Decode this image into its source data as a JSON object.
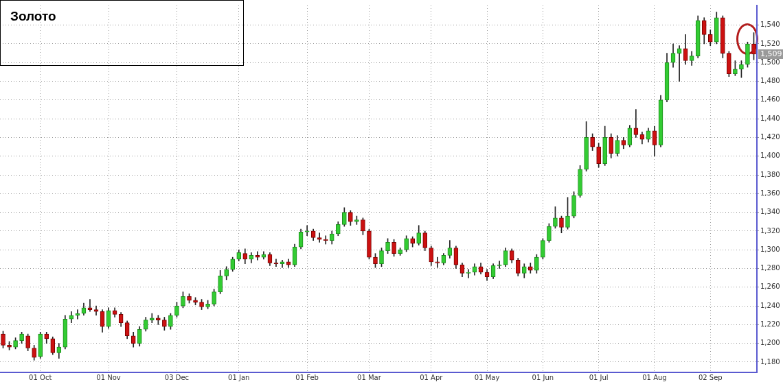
{
  "chart_data": {
    "type": "candlestick",
    "title": "Золото",
    "categories": [
      null,
      null,
      null,
      null,
      null,
      null,
      "01 Oct",
      null,
      null,
      null,
      null,
      null,
      null,
      null,
      null,
      null,
      null,
      "01 Nov",
      null,
      null,
      null,
      null,
      null,
      null,
      null,
      null,
      null,
      null,
      "03 Dec",
      null,
      null,
      null,
      null,
      null,
      null,
      null,
      null,
      null,
      "01 Jan",
      null,
      null,
      null,
      null,
      null,
      null,
      null,
      null,
      null,
      null,
      "01 Feb",
      null,
      null,
      null,
      null,
      null,
      null,
      null,
      null,
      null,
      "01 Mar",
      null,
      null,
      null,
      null,
      null,
      null,
      null,
      null,
      null,
      "01 Apr",
      null,
      null,
      null,
      null,
      null,
      null,
      null,
      null,
      "01 May",
      null,
      null,
      null,
      null,
      null,
      null,
      null,
      null,
      "01 Jun",
      null,
      null,
      null,
      null,
      null,
      null,
      null,
      null,
      "01 Jul",
      null,
      null,
      null,
      null,
      null,
      null,
      null,
      null,
      "01 Aug",
      null,
      null,
      null,
      null,
      null,
      null,
      null,
      null,
      "02 Sep",
      null,
      null,
      null,
      null,
      null,
      null,
      null
    ],
    "ohlc": [
      [
        1210,
        1213,
        1195,
        1198
      ],
      [
        1198,
        1202,
        1193,
        1196
      ],
      [
        1196,
        1206,
        1194,
        1203
      ],
      [
        1203,
        1212,
        1200,
        1210
      ],
      [
        1208,
        1210,
        1192,
        1195
      ],
      [
        1195,
        1198,
        1182,
        1185
      ],
      [
        1186,
        1212,
        1184,
        1210
      ],
      [
        1210,
        1212,
        1200,
        1205
      ],
      [
        1205,
        1207,
        1188,
        1190
      ],
      [
        1190,
        1200,
        1184,
        1196
      ],
      [
        1196,
        1230,
        1194,
        1226
      ],
      [
        1226,
        1234,
        1222,
        1230
      ],
      [
        1230,
        1236,
        1226,
        1232
      ],
      [
        1232,
        1243,
        1230,
        1238
      ],
      [
        1238,
        1247,
        1234,
        1236
      ],
      [
        1236,
        1240,
        1230,
        1234
      ],
      [
        1234,
        1236,
        1212,
        1218
      ],
      [
        1218,
        1238,
        1216,
        1235
      ],
      [
        1235,
        1238,
        1228,
        1231
      ],
      [
        1231,
        1233,
        1218,
        1222
      ],
      [
        1222,
        1224,
        1205,
        1208
      ],
      [
        1208,
        1212,
        1196,
        1200
      ],
      [
        1200,
        1218,
        1197,
        1215
      ],
      [
        1215,
        1228,
        1213,
        1225
      ],
      [
        1225,
        1232,
        1222,
        1227
      ],
      [
        1227,
        1230,
        1220,
        1225
      ],
      [
        1225,
        1228,
        1214,
        1218
      ],
      [
        1218,
        1232,
        1215,
        1230
      ],
      [
        1230,
        1244,
        1228,
        1240
      ],
      [
        1240,
        1255,
        1238,
        1250
      ],
      [
        1250,
        1253,
        1243,
        1246
      ],
      [
        1246,
        1249,
        1241,
        1244
      ],
      [
        1244,
        1247,
        1236,
        1239
      ],
      [
        1239,
        1246,
        1237,
        1242
      ],
      [
        1242,
        1258,
        1240,
        1255
      ],
      [
        1255,
        1278,
        1253,
        1272
      ],
      [
        1272,
        1282,
        1268,
        1279
      ],
      [
        1279,
        1292,
        1277,
        1290
      ],
      [
        1290,
        1300,
        1288,
        1297
      ],
      [
        1296,
        1301,
        1285,
        1290
      ],
      [
        1290,
        1297,
        1286,
        1294
      ],
      [
        1294,
        1298,
        1289,
        1292
      ],
      [
        1292,
        1298,
        1290,
        1295
      ],
      [
        1295,
        1297,
        1283,
        1286
      ],
      [
        1286,
        1290,
        1282,
        1285
      ],
      [
        1285,
        1289,
        1281,
        1287
      ],
      [
        1287,
        1290,
        1281,
        1284
      ],
      [
        1284,
        1306,
        1282,
        1303
      ],
      [
        1303,
        1322,
        1301,
        1319
      ],
      [
        1319,
        1326,
        1315,
        1320
      ],
      [
        1320,
        1322,
        1310,
        1313
      ],
      [
        1313,
        1318,
        1308,
        1311
      ],
      [
        1311,
        1315,
        1306,
        1310
      ],
      [
        1310,
        1320,
        1306,
        1317
      ],
      [
        1317,
        1330,
        1315,
        1327
      ],
      [
        1327,
        1345,
        1325,
        1340
      ],
      [
        1340,
        1342,
        1326,
        1330
      ],
      [
        1330,
        1336,
        1327,
        1332
      ],
      [
        1332,
        1334,
        1316,
        1320
      ],
      [
        1320,
        1322,
        1290,
        1292
      ],
      [
        1292,
        1296,
        1281,
        1285
      ],
      [
        1285,
        1302,
        1282,
        1299
      ],
      [
        1299,
        1312,
        1296,
        1308
      ],
      [
        1308,
        1311,
        1293,
        1296
      ],
      [
        1296,
        1302,
        1294,
        1300
      ],
      [
        1300,
        1315,
        1298,
        1312
      ],
      [
        1312,
        1314,
        1303,
        1307
      ],
      [
        1307,
        1326,
        1305,
        1318
      ],
      [
        1318,
        1320,
        1299,
        1302
      ],
      [
        1302,
        1304,
        1283,
        1287
      ],
      [
        1287,
        1292,
        1281,
        1286
      ],
      [
        1286,
        1296,
        1284,
        1294
      ],
      [
        1294,
        1310,
        1291,
        1302
      ],
      [
        1302,
        1304,
        1280,
        1284
      ],
      [
        1284,
        1286,
        1271,
        1275
      ],
      [
        1275,
        1279,
        1270,
        1276
      ],
      [
        1276,
        1285,
        1273,
        1282
      ],
      [
        1282,
        1286,
        1274,
        1276
      ],
      [
        1276,
        1279,
        1267,
        1271
      ],
      [
        1271,
        1285,
        1269,
        1283
      ],
      [
        1283,
        1288,
        1280,
        1284
      ],
      [
        1284,
        1302,
        1282,
        1299
      ],
      [
        1299,
        1301,
        1286,
        1289
      ],
      [
        1289,
        1291,
        1272,
        1275
      ],
      [
        1275,
        1285,
        1270,
        1282
      ],
      [
        1282,
        1286,
        1275,
        1278
      ],
      [
        1278,
        1295,
        1275,
        1292
      ],
      [
        1292,
        1312,
        1290,
        1310
      ],
      [
        1310,
        1328,
        1308,
        1325
      ],
      [
        1325,
        1346,
        1323,
        1334
      ],
      [
        1334,
        1336,
        1318,
        1324
      ],
      [
        1324,
        1356,
        1322,
        1336
      ],
      [
        1336,
        1362,
        1334,
        1358
      ],
      [
        1358,
        1390,
        1356,
        1386
      ],
      [
        1386,
        1437,
        1384,
        1420
      ],
      [
        1420,
        1424,
        1406,
        1410
      ],
      [
        1410,
        1414,
        1388,
        1392
      ],
      [
        1392,
        1432,
        1390,
        1420
      ],
      [
        1420,
        1424,
        1398,
        1403
      ],
      [
        1403,
        1422,
        1400,
        1417
      ],
      [
        1417,
        1420,
        1408,
        1412
      ],
      [
        1412,
        1433,
        1410,
        1430
      ],
      [
        1430,
        1450,
        1420,
        1423
      ],
      [
        1423,
        1426,
        1413,
        1418
      ],
      [
        1418,
        1430,
        1415,
        1427
      ],
      [
        1427,
        1432,
        1400,
        1412
      ],
      [
        1412,
        1465,
        1410,
        1460
      ],
      [
        1460,
        1510,
        1458,
        1500
      ],
      [
        1500,
        1520,
        1495,
        1510
      ],
      [
        1510,
        1518,
        1480,
        1515
      ],
      [
        1515,
        1530,
        1498,
        1502
      ],
      [
        1502,
        1512,
        1497,
        1507
      ],
      [
        1507,
        1550,
        1505,
        1545
      ],
      [
        1545,
        1548,
        1520,
        1530
      ],
      [
        1530,
        1535,
        1518,
        1522
      ],
      [
        1522,
        1554,
        1520,
        1548
      ],
      [
        1548,
        1550,
        1505,
        1510
      ],
      [
        1510,
        1512,
        1485,
        1488
      ],
      [
        1488,
        1502,
        1486,
        1493
      ],
      [
        1493,
        1502,
        1484,
        1498
      ],
      [
        1498,
        1522,
        1495,
        1520
      ],
      [
        1520,
        1532,
        1503,
        1509
      ]
    ],
    "ylim": [
      1169,
      1561
    ],
    "yticks": [
      {
        "value": 1180,
        "label": "1,180"
      },
      {
        "value": 1200,
        "label": "1,200"
      },
      {
        "value": 1220,
        "label": "1,220"
      },
      {
        "value": 1240,
        "label": "1,240"
      },
      {
        "value": 1260,
        "label": "1,260"
      },
      {
        "value": 1280,
        "label": "1,280"
      },
      {
        "value": 1300,
        "label": "1,300"
      },
      {
        "value": 1320,
        "label": "1,320"
      },
      {
        "value": 1340,
        "label": "1,340"
      },
      {
        "value": 1360,
        "label": "1,360"
      },
      {
        "value": 1380,
        "label": "1,380"
      },
      {
        "value": 1400,
        "label": "1,400"
      },
      {
        "value": 1420,
        "label": "1,420"
      },
      {
        "value": 1440,
        "label": "1,440"
      },
      {
        "value": 1460,
        "label": "1,460"
      },
      {
        "value": 1480,
        "label": "1,480"
      },
      {
        "value": 1500,
        "label": "1,500"
      },
      {
        "value": 1520,
        "label": "1,520"
      },
      {
        "value": 1540,
        "label": "1,540"
      }
    ],
    "grid": true,
    "annotations": [
      {
        "text": "1,509",
        "y": 1509
      }
    ]
  }
}
